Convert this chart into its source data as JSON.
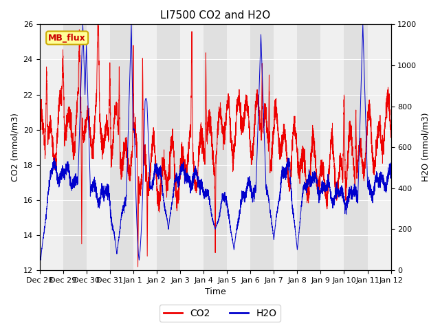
{
  "title": "LI7500 CO2 and H2O",
  "xlabel": "Time",
  "ylabel_left": "CO2 (mmol/m3)",
  "ylabel_right": "H2O (mmol/m3)",
  "ylim_left": [
    12,
    26
  ],
  "ylim_right": [
    0,
    1200
  ],
  "xtick_labels": [
    "Dec 28",
    "Dec 29",
    "Dec 30",
    "Dec 31",
    "Jan 1",
    "Jan 2",
    "Jan 3",
    "Jan 4",
    "Jan 5",
    "Jan 6",
    "Jan 7",
    "Jan 8",
    "Jan 9",
    "Jan 10",
    "Jan 11",
    "Jan 12"
  ],
  "background_color": "#ffffff",
  "plot_bg_color": "#e0e0e0",
  "stripe_color": "#f0f0f0",
  "co2_color": "#ee0000",
  "h2o_color": "#0000cc",
  "legend_label_co2": "CO2",
  "legend_label_h2o": "H2O",
  "annotation_text": "MB_flux",
  "annotation_bg": "#ffff99",
  "annotation_border": "#ccaa00",
  "title_fontsize": 11,
  "axis_label_fontsize": 9,
  "tick_fontsize": 8,
  "legend_fontsize": 10,
  "num_days": 15,
  "points_per_day": 288,
  "yticks_left": [
    12,
    14,
    16,
    18,
    20,
    22,
    24,
    26
  ],
  "yticks_right": [
    0,
    200,
    400,
    600,
    800,
    1000,
    1200
  ]
}
